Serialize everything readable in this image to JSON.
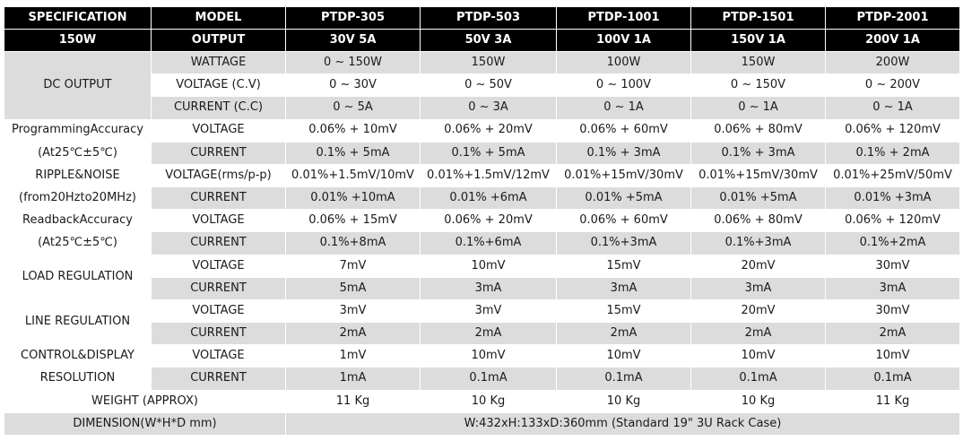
{
  "header": {
    "spec_label": "SPECIFICATION",
    "spec_power": "150W",
    "model_label": "MODEL",
    "output_label": "OUTPUT",
    "models": [
      "PTDP-305",
      "PTDP-503",
      "PTDP-1001",
      "PTDP-1501",
      "PTDP-2001"
    ],
    "outputs": [
      "30V 5A",
      "50V 3A",
      "100V 1A",
      "150V 1A",
      "200V 1A"
    ]
  },
  "dc_output": {
    "label": "DC OUTPUT",
    "rows": [
      {
        "param": "WATTAGE",
        "values": [
          "0 ~ 150W",
          "150W",
          "100W",
          "150W",
          "200W"
        ]
      },
      {
        "param": "VOLTAGE (C.V)",
        "values": [
          "0 ~ 30V",
          "0 ~ 50V",
          "0 ~ 100V",
          "0 ~ 150V",
          "0 ~ 200V"
        ]
      },
      {
        "param": "CURRENT (C.C)",
        "values": [
          "0 ~ 5A",
          "0 ~ 3A",
          "0 ~ 1A",
          "0 ~ 1A",
          "0 ~ 1A"
        ]
      }
    ]
  },
  "programming_accuracy": {
    "label_line1": "ProgrammingAccuracy",
    "label_line2": "(At25℃±5℃)",
    "rows": [
      {
        "param": "VOLTAGE",
        "values": [
          "0.06% + 10mV",
          "0.06% + 20mV",
          "0.06% + 60mV",
          "0.06% + 80mV",
          "0.06% + 120mV"
        ]
      },
      {
        "param": "CURRENT",
        "values": [
          "0.1% + 5mA",
          "0.1% + 5mA",
          "0.1% + 3mA",
          "0.1% + 3mA",
          "0.1% + 2mA"
        ]
      }
    ]
  },
  "ripple_noise": {
    "label_line1": "RIPPLE&NOISE",
    "label_line2": "(from20Hzto20MHz)",
    "rows": [
      {
        "param": "VOLTAGE(rms/p-p)",
        "values": [
          "0.01%+1.5mV/10mV",
          "0.01%+1.5mV/12mV",
          "0.01%+15mV/30mV",
          "0.01%+15mV/30mV",
          "0.01%+25mV/50mV"
        ]
      },
      {
        "param": "CURRENT",
        "values": [
          "0.01% +10mA",
          "0.01% +6mA",
          "0.01% +5mA",
          "0.01% +5mA",
          "0.01% +3mA"
        ]
      }
    ]
  },
  "readback_accuracy": {
    "label_line1": "ReadbackAccuracy",
    "label_line2": "(At25℃±5℃)",
    "rows": [
      {
        "param": "VOLTAGE",
        "values": [
          "0.06% + 15mV",
          "0.06% + 20mV",
          "0.06% + 60mV",
          "0.06% + 80mV",
          "0.06% + 120mV"
        ]
      },
      {
        "param": "CURRENT",
        "values": [
          "0.1%+8mA",
          "0.1%+6mA",
          "0.1%+3mA",
          "0.1%+3mA",
          "0.1%+2mA"
        ]
      }
    ]
  },
  "load_regulation": {
    "label": "LOAD REGULATION",
    "rows": [
      {
        "param": "VOLTAGE",
        "values": [
          "7mV",
          "10mV",
          "15mV",
          "20mV",
          "30mV"
        ]
      },
      {
        "param": "CURRENT",
        "values": [
          "5mA",
          "3mA",
          "3mA",
          "3mA",
          "3mA"
        ]
      }
    ]
  },
  "line_regulation": {
    "label": "LINE REGULATION",
    "rows": [
      {
        "param": "VOLTAGE",
        "values": [
          "3mV",
          "3mV",
          "15mV",
          "20mV",
          "30mV"
        ]
      },
      {
        "param": "CURRENT",
        "values": [
          "2mA",
          "2mA",
          "2mA",
          "2mA",
          "2mA"
        ]
      }
    ]
  },
  "control_display": {
    "label_line1": "CONTROL&DISPLAY",
    "label_line2": "RESOLUTION",
    "rows": [
      {
        "param": "VOLTAGE",
        "values": [
          "1mV",
          "10mV",
          "10mV",
          "10mV",
          "10mV"
        ]
      },
      {
        "param": "CURRENT",
        "values": [
          "1mA",
          "0.1mA",
          "0.1mA",
          "0.1mA",
          "0.1mA"
        ]
      }
    ]
  },
  "weight": {
    "label": "WEIGHT (APPROX)",
    "values": [
      "11 Kg",
      "10 Kg",
      "10 Kg",
      "10 Kg",
      "11 Kg"
    ]
  },
  "dimension": {
    "label": "DIMENSION(W*H*D mm)",
    "value": "W:432xH:133xD:360mm (Standard 19\" 3U Rack Case)"
  },
  "colors": {
    "header_bg": "#000000",
    "header_text": "#ffffff",
    "band_gray": "#dcdcdc",
    "band_white": "#ffffff"
  }
}
